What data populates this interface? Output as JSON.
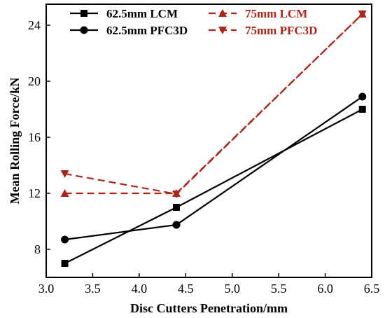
{
  "chart_data": {
    "type": "line",
    "xlabel": "Disc Cutters Penetration/mm",
    "ylabel": "Mean Rolling Force/kN",
    "xlim": [
      3.0,
      6.5
    ],
    "ylim": [
      6,
      25.5
    ],
    "xticks": [
      "3.0",
      "3.5",
      "4.0",
      "4.5",
      "5.0",
      "5.5",
      "6.0",
      "6.5"
    ],
    "yticks": [
      "8",
      "12",
      "16",
      "20",
      "24"
    ],
    "x": [
      3.2,
      4.4,
      6.4
    ],
    "grid": false,
    "legend_position": "top",
    "series": [
      {
        "name": "62.5mm LCM",
        "values": [
          7.0,
          11.0,
          18.0
        ],
        "color": "#000000",
        "line_style": "solid",
        "marker": "square"
      },
      {
        "name": "62.5mm PFC3D",
        "values": [
          8.7,
          9.75,
          18.9
        ],
        "color": "#000000",
        "line_style": "solid",
        "marker": "circle"
      },
      {
        "name": "75mm LCM",
        "values": [
          12.0,
          12.0,
          24.8
        ],
        "color": "#b02418",
        "line_style": "dashed",
        "marker": "triangle-up"
      },
      {
        "name": "75mm PFC3D",
        "values": [
          13.4,
          11.95,
          24.8
        ],
        "color": "#b02418",
        "line_style": "dashed",
        "marker": "triangle-down"
      }
    ]
  }
}
